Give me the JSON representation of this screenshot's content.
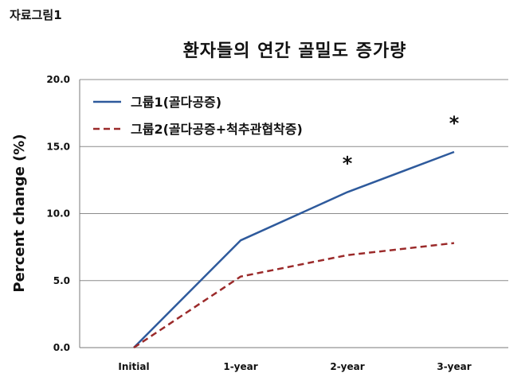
{
  "figure_label": "자료그림1",
  "chart_data": {
    "type": "line",
    "title": "환자들의 연간 골밀도 증가량",
    "xlabel": "",
    "ylabel": "Percent change (%)",
    "categories": [
      "Initial",
      "1-year",
      "2-year",
      "3-year"
    ],
    "ylim": [
      0,
      20
    ],
    "yticks": [
      "0.0",
      "5.0",
      "10.0",
      "15.0",
      "20.0"
    ],
    "grid": true,
    "legend_position": "top-left",
    "series": [
      {
        "name": "그룹1(골다공증)",
        "values": [
          0,
          8.0,
          11.6,
          14.6
        ],
        "color": "#2e5a9c",
        "style": "solid"
      },
      {
        "name": "그룹2(골다공증+척추관협착증)",
        "values": [
          0,
          5.3,
          6.9,
          7.8
        ],
        "color": "#9b2a2a",
        "style": "dashed"
      }
    ],
    "annotations": [
      {
        "text": "*",
        "category": "2-year"
      },
      {
        "text": "*",
        "category": "3-year"
      }
    ]
  }
}
